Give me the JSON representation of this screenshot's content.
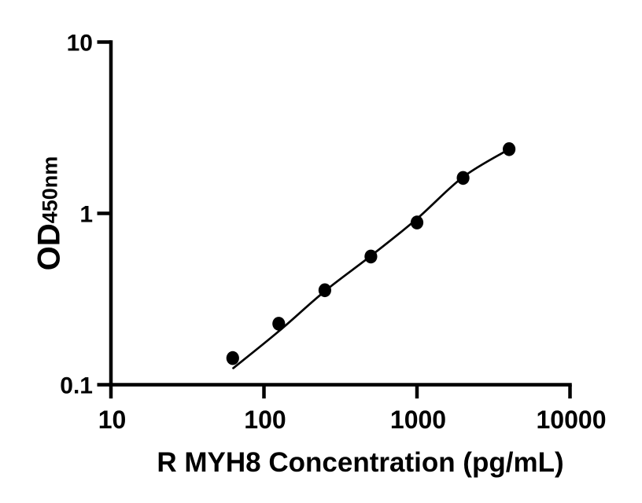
{
  "figure": {
    "background": "#ffffff",
    "ink_color": "#000000"
  },
  "chart_data": {
    "type": "scatter",
    "title": "",
    "xlabel": "R MYH8 Concentration (pg/mL)",
    "ylabel_main": "OD",
    "ylabel_sub": "450nm",
    "x_scale": "log10",
    "y_scale": "log10",
    "xlim": [
      10,
      10000
    ],
    "ylim": [
      0.1,
      10
    ],
    "grid": false,
    "legend_position": "none",
    "x_tick_values": [
      10,
      100,
      1000,
      10000
    ],
    "x_tick_labels": [
      "10",
      "100",
      "1000",
      "10000"
    ],
    "y_tick_values": [
      10,
      1,
      0.1
    ],
    "y_tick_labels": [
      "10",
      "1",
      "0.1"
    ],
    "series": [
      {
        "name": "standard curve data points",
        "marker": "filled-circle",
        "color": "#000000",
        "x": [
          62.5,
          125,
          250,
          500,
          1000,
          2000,
          4000
        ],
        "y": [
          0.143,
          0.227,
          0.356,
          0.56,
          0.885,
          1.61,
          2.37
        ]
      }
    ],
    "fit_curve": {
      "name": "4PL fit line",
      "color": "#000000",
      "x": [
        63,
        125,
        250,
        500,
        1000,
        2000,
        4000
      ],
      "y": [
        0.125,
        0.205,
        0.352,
        0.565,
        0.93,
        1.63,
        2.37
      ]
    }
  }
}
